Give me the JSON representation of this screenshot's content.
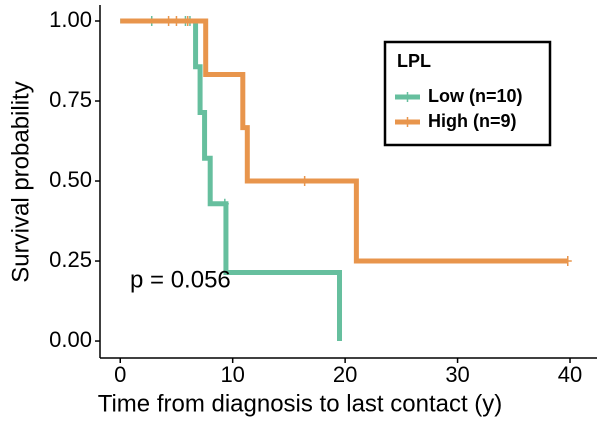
{
  "chart_data": {
    "type": "step",
    "x_label": "Time from diagnosis to last contact (y)",
    "y_label": "Survival probability",
    "annotation": "p = 0.056",
    "legend_title": "LPL",
    "legend_position": "top-right",
    "xlim": [
      -1.8,
      42.4
    ],
    "xticks": [
      0,
      10,
      20,
      30,
      40
    ],
    "ylim": [
      -0.053,
      1.05
    ],
    "yticks": [
      {
        "value": 0,
        "label": "0.00"
      },
      {
        "value": 0.25,
        "label": "0.25"
      },
      {
        "value": 0.5,
        "label": "0.50"
      },
      {
        "value": 0.75,
        "label": "0.75"
      },
      {
        "value": 1,
        "label": "1.00"
      }
    ],
    "series": [
      {
        "name": "Low (n=10)",
        "color": "#66bf9e",
        "x": [
          0,
          6.7,
          7.1,
          7.5,
          8.0,
          9.4,
          19.5
        ],
        "values": [
          1,
          0.857,
          0.714,
          0.571,
          0.429,
          0.214,
          0
        ],
        "censor_x": [
          2.8,
          5.8,
          6.2,
          9.3
        ],
        "censor_values": [
          1,
          1,
          1,
          0.429
        ]
      },
      {
        "name": "High (n=9)",
        "color": "#e8954c",
        "x": [
          0,
          7.6,
          10.9,
          11.3,
          21.0,
          39.8
        ],
        "values": [
          1,
          0.833,
          0.667,
          0.5,
          0.25,
          0.25
        ],
        "censor_x": [
          4.3,
          5.0,
          6.0,
          16.4,
          39.8
        ],
        "censor_values": [
          1,
          1,
          1,
          0.5,
          0.25
        ]
      }
    ]
  }
}
